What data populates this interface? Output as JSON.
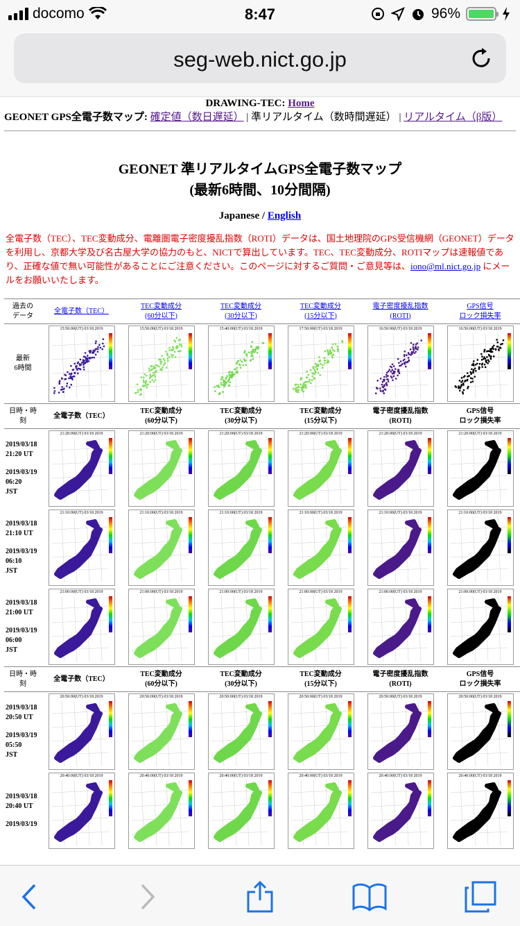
{
  "status": {
    "carrier": "docomo",
    "time": "8:47",
    "battery": "96%",
    "battery_level": 0.96
  },
  "browser": {
    "url": "seg-web.nict.go.jp"
  },
  "nav": {
    "head": "DRAWING-TEC:",
    "home": "Home",
    "line_label": "GEONET GPS全電子数マップ:",
    "confirmed": "確定値（数日遅延）",
    "sep1": "|",
    "near_realtime": "準リアルタイム（数時間遅延）",
    "sep2": "|",
    "beta": "リアルタイム（β版）"
  },
  "title_line1": "GEONET 準リアルタイムGPS全電子数マップ",
  "title_line2": "(最新6時間、10分間隔)",
  "lang": {
    "japanese": "Japanese",
    "slash": "/",
    "english": "English"
  },
  "description": "全電子数（TEC）、TEC変動成分、電離圏電子密度擾乱指数（ROTI）データは、国土地理院のGPS受信機網（GEONET）データを利用し、京都大学及び名古屋大学の協力のもと、NICTで算出しています。TEC、TEC変動成分、ROTIマップは速報値であり、正確な値で無い可能性があることにご注意ください。このページに対するご質問・ご意見等は、",
  "email": "iono@ml.nict.go.jp",
  "description_end": " にメールをお願いいたします。",
  "past_header": {
    "label": "過去の\nデータ",
    "cols": [
      "全電子数（TEC）",
      "TEC変動成分\n(60分以下)",
      "TEC変動成分\n(30分以下)",
      "TEC変動成分\n(15分以下)",
      "電子密度擾乱指数\n(ROTI)",
      "GPS信号\nロック損失率"
    ]
  },
  "latest_row": {
    "label": "最新\n6時間",
    "captions": [
      "15:50:00(UT) 03/18 2019",
      "15:50:00(UT) 03/18 2019",
      "15:40:00(UT) 03/18 2019",
      "17:50:00(UT) 03/18 2019",
      "16:50:00(UT) 03/18 2019",
      "16:50:00(UT) 03/18 2019"
    ]
  },
  "table_header": {
    "label": "日時・時\n刻",
    "cols": [
      "全電子数（TEC）",
      "TEC変動成分\n(60分以下)",
      "TEC変動成分\n(30分以下)",
      "TEC変動成分\n(15分以下)",
      "電子密度擾乱指数\n(ROTI)",
      "GPS信号\nロック損失率"
    ]
  },
  "rows": [
    {
      "ut": "2019/03/18\n21:20 UT",
      "jst": "2019/03/19\n06:20\nJST",
      "caption": "21:20:00(UT) 03/18 2019"
    },
    {
      "ut": "2019/03/18\n21:10 UT",
      "jst": "2019/03/19\n06:10\nJST",
      "caption": "21:10:00(UT) 03/18 2019"
    },
    {
      "ut": "2019/03/18\n21:00 UT",
      "jst": "2019/03/19\n06:00\nJST",
      "caption": "21:00:00(UT) 03/18 2019"
    }
  ],
  "rows2": [
    {
      "ut": "2019/03/18\n20:50 UT",
      "jst": "2019/03/19\n05:50\nJST",
      "caption": "20:50:00(UT) 03/18 2019"
    },
    {
      "ut": "2019/03/18\n20:40 UT",
      "jst": "2019/03/19",
      "caption": "20:40:00(UT) 03/18 2019"
    }
  ],
  "map_colors": {
    "tec": "#3a1a9a",
    "tec60": "#7ee05a",
    "tec30": "#6ed84a",
    "tec15": "#78dc4c",
    "roti": "#4a1a8a",
    "lol": "#000000"
  }
}
